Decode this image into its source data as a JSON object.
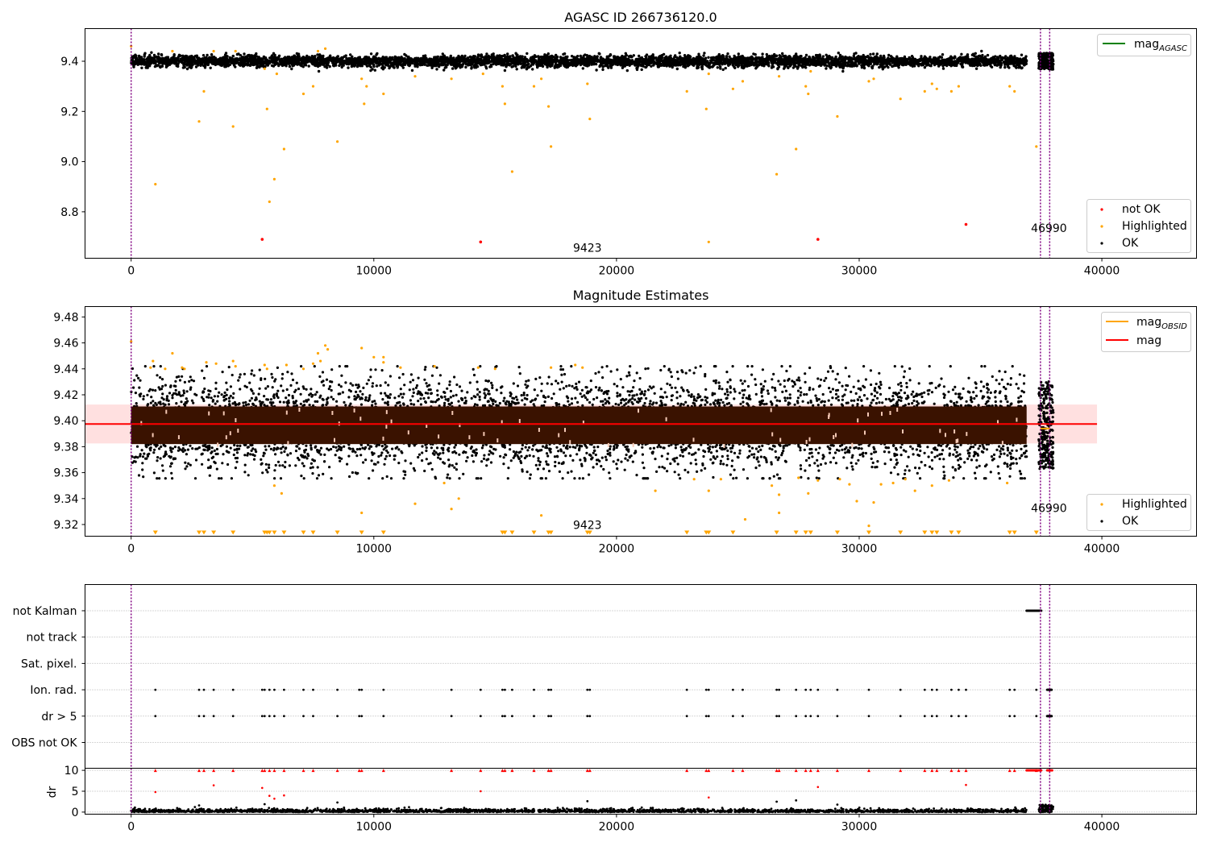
{
  "chart_data": [
    {
      "type": "scatter",
      "title": "AGASC ID 266736120.0",
      "xlim": [
        -1900,
        43900
      ],
      "ylim": [
        8.615,
        9.53
      ],
      "xticks": [
        "0",
        "10000",
        "20000",
        "30000",
        "40000"
      ],
      "yticks": [
        "8.8",
        "9.0",
        "9.2",
        "9.4"
      ],
      "grid": false,
      "legend_line": {
        "label_base": "mag",
        "label_sub": "AGASC",
        "color": "#008000"
      },
      "legend_points": [
        {
          "label": "not OK",
          "color": "#ff0000"
        },
        {
          "label": "Highlighted",
          "color": "#ffa500"
        },
        {
          "label": "OK",
          "color": "#000000"
        }
      ],
      "vlines": [
        0,
        37470,
        37850
      ],
      "annotations": [
        {
          "text": "9423",
          "x": 18800,
          "y": 8.64
        },
        {
          "text": "46990",
          "x": 37820,
          "y": 8.72
        }
      ],
      "ok_band": {
        "center": 9.4,
        "halfwidth": 0.025,
        "x_range": [
          0,
          36900
        ],
        "cluster_range": [
          37400,
          38000
        ]
      },
      "highlighted_points": [
        [
          0,
          9.46
        ],
        [
          1000,
          8.91
        ],
        [
          1700,
          9.44
        ],
        [
          2800,
          9.16
        ],
        [
          3000,
          9.28
        ],
        [
          3400,
          9.44
        ],
        [
          4200,
          9.14
        ],
        [
          4300,
          9.44
        ],
        [
          5500,
          9.37
        ],
        [
          5600,
          9.21
        ],
        [
          5700,
          8.84
        ],
        [
          5900,
          8.93
        ],
        [
          6000,
          9.35
        ],
        [
          6300,
          9.05
        ],
        [
          7100,
          9.27
        ],
        [
          7500,
          9.3
        ],
        [
          7700,
          9.44
        ],
        [
          8000,
          9.45
        ],
        [
          8500,
          9.08
        ],
        [
          9500,
          9.33
        ],
        [
          9600,
          9.23
        ],
        [
          9700,
          9.3
        ],
        [
          10400,
          9.27
        ],
        [
          11700,
          9.34
        ],
        [
          13200,
          9.33
        ],
        [
          14500,
          9.35
        ],
        [
          15300,
          9.3
        ],
        [
          15400,
          9.23
        ],
        [
          15700,
          8.96
        ],
        [
          16600,
          9.3
        ],
        [
          16900,
          9.33
        ],
        [
          17200,
          9.22
        ],
        [
          17300,
          9.06
        ],
        [
          18800,
          9.31
        ],
        [
          18900,
          9.17
        ],
        [
          22900,
          9.28
        ],
        [
          23700,
          9.21
        ],
        [
          23800,
          8.68
        ],
        [
          23800,
          9.35
        ],
        [
          24800,
          9.29
        ],
        [
          25200,
          9.32
        ],
        [
          26600,
          8.95
        ],
        [
          26700,
          9.34
        ],
        [
          27400,
          9.05
        ],
        [
          27800,
          9.3
        ],
        [
          27900,
          9.27
        ],
        [
          28000,
          9.36
        ],
        [
          29100,
          9.18
        ],
        [
          30400,
          9.32
        ],
        [
          30600,
          9.33
        ],
        [
          31700,
          9.25
        ],
        [
          32700,
          9.28
        ],
        [
          33000,
          9.31
        ],
        [
          33200,
          9.29
        ],
        [
          33800,
          9.28
        ],
        [
          34100,
          9.3
        ],
        [
          36200,
          9.3
        ],
        [
          36400,
          9.28
        ],
        [
          37300,
          9.06
        ]
      ],
      "not_ok_points": [
        [
          5400,
          8.69
        ],
        [
          14400,
          8.68
        ],
        [
          28300,
          8.69
        ],
        [
          34400,
          8.75
        ]
      ]
    },
    {
      "type": "scatter",
      "title": "Magnitude Estimates",
      "xlim": [
        -1900,
        43900
      ],
      "ylim": [
        9.311,
        9.488
      ],
      "xticks": [
        "0",
        "10000",
        "20000",
        "30000",
        "40000"
      ],
      "yticks": [
        "9.32",
        "9.34",
        "9.36",
        "9.38",
        "9.40",
        "9.42",
        "9.44",
        "9.46",
        "9.48"
      ],
      "grid": false,
      "legend_lines": [
        {
          "label_base": "mag",
          "label_sub": "OBSID",
          "color": "#ffa500"
        },
        {
          "label_base": "mag",
          "label_sub": "",
          "color": "#ff0000"
        }
      ],
      "legend_points": [
        {
          "label": "Highlighted",
          "color": "#ffa500"
        },
        {
          "label": "OK",
          "color": "#000000"
        }
      ],
      "mag_line": {
        "value": 9.3975,
        "x_range": [
          -1900,
          39800
        ]
      },
      "mag_band": [
        9.3825,
        9.4125
      ],
      "obsid_band": {
        "range": [
          9.382,
          9.411
        ],
        "x_range": [
          0,
          36900
        ],
        "color": "#3a1200"
      },
      "ok_spread": {
        "center": 9.397,
        "halfwidth": 0.036,
        "x_range": [
          0,
          36900
        ],
        "cluster_range": [
          37400,
          38000
        ]
      },
      "vlines": [
        0,
        37470,
        37850
      ],
      "annotations": [
        {
          "text": "9423",
          "x": 18800,
          "y": 9.3165
        },
        {
          "text": "46990",
          "x": 37820,
          "y": 9.3295
        }
      ],
      "highlighted_points": [
        [
          0,
          9.461
        ],
        [
          800,
          9.441
        ],
        [
          900,
          9.446
        ],
        [
          1400,
          9.44
        ],
        [
          1700,
          9.452
        ],
        [
          2100,
          9.441
        ],
        [
          2200,
          9.44
        ],
        [
          3100,
          9.445
        ],
        [
          3500,
          9.444
        ],
        [
          4200,
          9.446
        ],
        [
          4300,
          9.442
        ],
        [
          5500,
          9.443
        ],
        [
          5600,
          9.44
        ],
        [
          5900,
          9.35
        ],
        [
          6200,
          9.344
        ],
        [
          6400,
          9.443
        ],
        [
          7100,
          9.44
        ],
        [
          7500,
          9.444
        ],
        [
          7700,
          9.452
        ],
        [
          7800,
          9.446
        ],
        [
          8000,
          9.458
        ],
        [
          8100,
          9.455
        ],
        [
          9500,
          9.329
        ],
        [
          9500,
          9.456
        ],
        [
          10000,
          9.449
        ],
        [
          10400,
          9.449
        ],
        [
          10400,
          9.445
        ],
        [
          11100,
          9.441
        ],
        [
          11700,
          9.336
        ],
        [
          12500,
          9.442
        ],
        [
          12900,
          9.352
        ],
        [
          13200,
          9.332
        ],
        [
          13500,
          9.34
        ],
        [
          14300,
          9.441
        ],
        [
          15000,
          9.44
        ],
        [
          16900,
          9.327
        ],
        [
          17300,
          9.441
        ],
        [
          18300,
          9.443
        ],
        [
          18600,
          9.441
        ],
        [
          21600,
          9.346
        ],
        [
          23200,
          9.355
        ],
        [
          23800,
          9.346
        ],
        [
          24300,
          9.355
        ],
        [
          25300,
          9.324
        ],
        [
          26400,
          9.35
        ],
        [
          26700,
          9.329
        ],
        [
          26700,
          9.343
        ],
        [
          27500,
          9.356
        ],
        [
          27900,
          9.344
        ],
        [
          28300,
          9.354
        ],
        [
          29200,
          9.355
        ],
        [
          29600,
          9.351
        ],
        [
          29900,
          9.338
        ],
        [
          30400,
          9.319
        ],
        [
          30600,
          9.337
        ],
        [
          30900,
          9.351
        ],
        [
          31400,
          9.352
        ],
        [
          31900,
          9.355
        ],
        [
          32300,
          9.346
        ],
        [
          33000,
          9.35
        ],
        [
          33700,
          9.354
        ],
        [
          36100,
          9.352
        ]
      ],
      "clipped_low_x": [
        1000,
        2800,
        3000,
        3400,
        4200,
        5500,
        5600,
        5700,
        5900,
        6300,
        7100,
        7500,
        8500,
        9500,
        10400,
        15300,
        15400,
        15700,
        16600,
        17200,
        17300,
        18800,
        18900,
        22900,
        23700,
        23800,
        24800,
        26600,
        27400,
        27800,
        28000,
        29100,
        30400,
        31700,
        32700,
        33000,
        33200,
        33800,
        34100,
        36200,
        36400,
        37300
      ]
    },
    {
      "type": "scatter",
      "title": "",
      "xlim": [
        -1900,
        43900
      ],
      "ylabel": "dr",
      "xticks": [
        "0",
        "10000",
        "20000",
        "30000",
        "40000"
      ],
      "categories": [
        "not Kalman",
        "not track",
        "Sat. pixel.",
        "Ion. rad.",
        "dr > 5",
        "OBS not OK"
      ],
      "dr_ylim": [
        -0.5,
        10.5
      ],
      "dr_yticks": [
        "0",
        "5",
        "10"
      ],
      "vlines": [
        0,
        37470,
        37850
      ],
      "not_kalman_range": [
        36900,
        37500
      ],
      "flag_x": [
        1000,
        2800,
        3000,
        3400,
        4200,
        5400,
        5500,
        5700,
        5900,
        6300,
        7100,
        7500,
        8500,
        9400,
        9500,
        10400,
        13200,
        14400,
        15300,
        15400,
        15700,
        16600,
        17200,
        17300,
        18800,
        18900,
        22900,
        23700,
        23800,
        24800,
        25200,
        26600,
        26700,
        27400,
        27800,
        28000,
        28300,
        29100,
        30400,
        31700,
        32700,
        33000,
        33200,
        33800,
        34100,
        34400,
        36200,
        36400,
        37300
      ],
      "dr_red_points": [
        [
          1000,
          4.8
        ],
        [
          3400,
          6.4
        ],
        [
          5400,
          5.8
        ],
        [
          5700,
          3.9
        ],
        [
          5900,
          3.2
        ],
        [
          6300,
          4.0
        ],
        [
          14400,
          5.0
        ],
        [
          23800,
          3.5
        ],
        [
          28300,
          6.0
        ],
        [
          34400,
          6.5
        ]
      ],
      "dr_black_points": [
        [
          2800,
          1.6
        ],
        [
          5500,
          1.9
        ],
        [
          8500,
          2.3
        ],
        [
          18800,
          2.6
        ],
        [
          26600,
          2.5
        ],
        [
          27400,
          2.8
        ],
        [
          29100,
          1.8
        ]
      ]
    }
  ]
}
